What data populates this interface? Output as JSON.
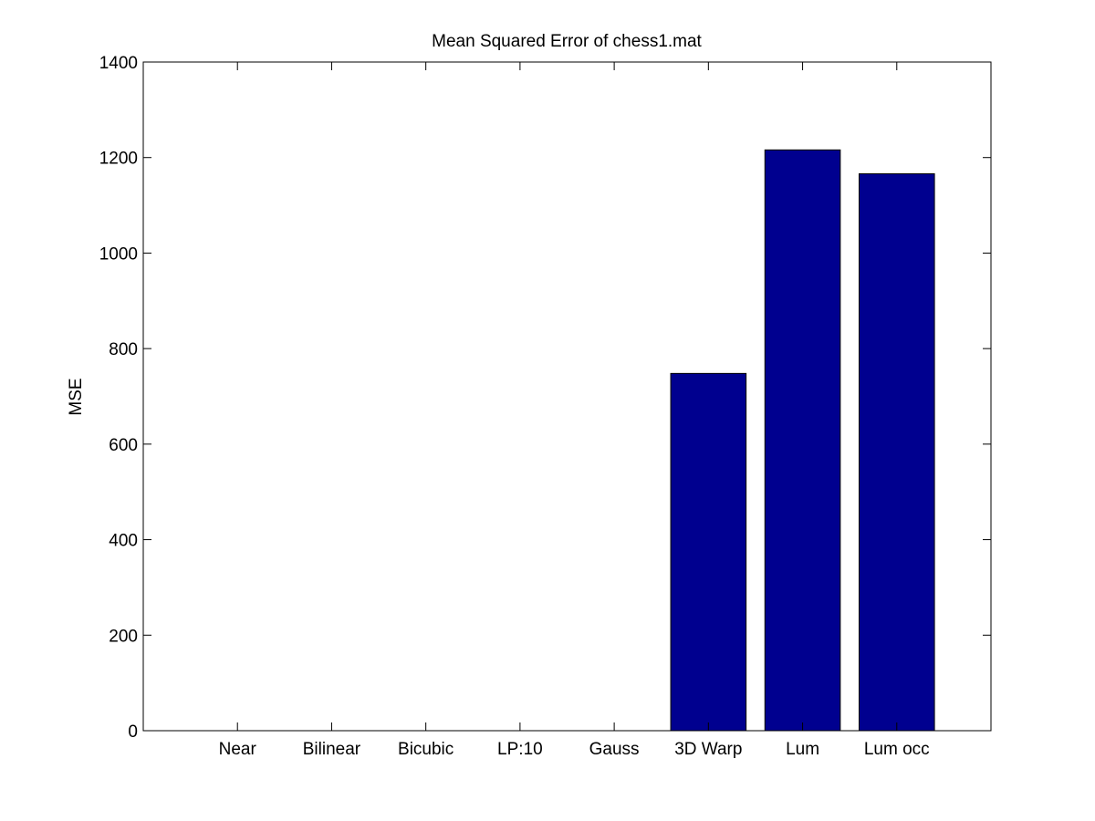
{
  "chart_data": {
    "type": "bar",
    "title": "Mean Squared Error of chess1.mat",
    "xlabel": "",
    "ylabel": "MSE",
    "categories": [
      "Near",
      "Bilinear",
      "Bicubic",
      "LP:10",
      "Gauss",
      "3D Warp",
      "Lum",
      "Lum occ"
    ],
    "values": [
      0,
      0,
      0,
      0,
      0,
      748,
      1216,
      1166
    ],
    "ylim": [
      0,
      1400
    ],
    "yticks": [
      0,
      200,
      400,
      600,
      800,
      1000,
      1200,
      1400
    ],
    "xlim": [
      0,
      9
    ],
    "grid": false,
    "legend": "none",
    "bar_color": "#00008F",
    "background": "#FFFFFF"
  }
}
